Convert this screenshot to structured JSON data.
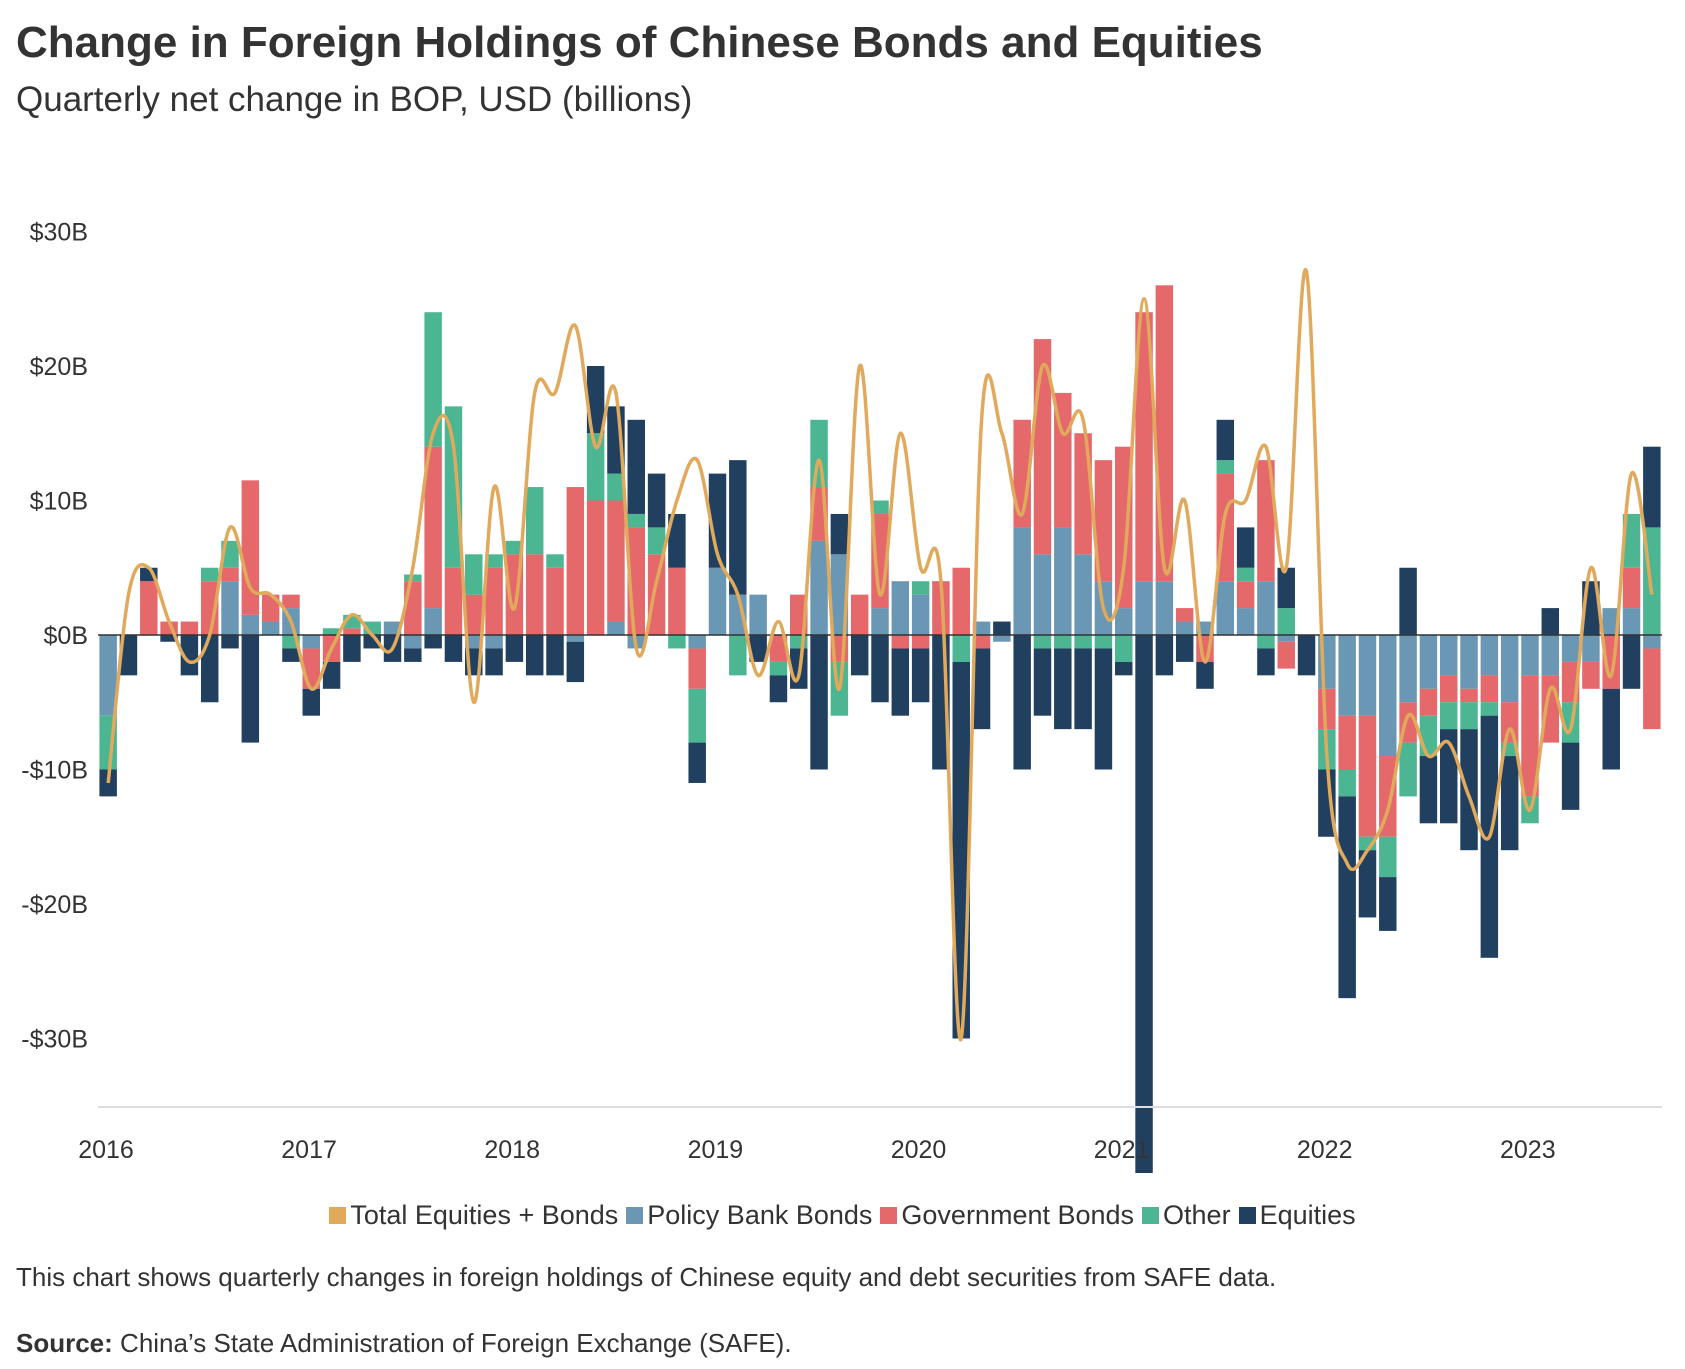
{
  "header": {
    "title": "Change in Foreign Holdings of Chinese Bonds and Equities",
    "subtitle": "Quarterly net change in BOP, USD (billions)"
  },
  "footer": {
    "note": "This chart shows quarterly changes in foreign holdings of Chinese equity and debt securities from SAFE data.",
    "source_label": "Source:",
    "source_text": "China’s State Administration of Foreign Exchange (SAFE)."
  },
  "chart_data": {
    "type": "bar",
    "stacked": true,
    "grid": false,
    "legend_position": "bottom",
    "ylim": [
      -35,
      35
    ],
    "y_ticks": [
      30,
      20,
      10,
      0,
      -10,
      -20,
      -30
    ],
    "y_tick_labels": [
      "$30B",
      "$20B",
      "$10B",
      "$0B",
      "-$10B",
      "-$20B",
      "-$30B"
    ],
    "x_year_labels": [
      "2016",
      "2017",
      "2018",
      "2019",
      "2020",
      "2021",
      "2022",
      "2023"
    ],
    "x_year_start_index": [
      0,
      10,
      20,
      30,
      40,
      50,
      60,
      70
    ],
    "colors": {
      "total": "#e0a95c",
      "policy": "#6a97b4",
      "government": "#e5686a",
      "other": "#4cb592",
      "equities": "#21405f"
    },
    "legend": [
      {
        "key": "total",
        "label": "Total Equities + Bonds"
      },
      {
        "key": "policy",
        "label": "Policy Bank Bonds"
      },
      {
        "key": "government",
        "label": "Government Bonds"
      },
      {
        "key": "other",
        "label": "Other"
      },
      {
        "key": "equities",
        "label": "Equities"
      }
    ],
    "series": [
      {
        "key": "policy",
        "name": "Policy Bank Bonds",
        "values": [
          -6,
          0,
          0,
          0,
          0,
          0,
          4,
          1.5,
          1,
          2,
          -1,
          0,
          0,
          0,
          1,
          -1,
          2,
          0,
          -1,
          -1,
          0,
          0,
          0,
          -0.5,
          0,
          1,
          -1,
          0,
          0,
          -1,
          5,
          3,
          3,
          0,
          0,
          7,
          6,
          0,
          2,
          4,
          3,
          0,
          0,
          1,
          -0.5,
          8,
          6,
          8,
          6,
          4,
          2,
          4,
          4,
          1,
          1,
          4,
          2,
          4,
          -0.5,
          0,
          -4,
          -6,
          -6,
          -9,
          -5,
          -4,
          -3,
          -4,
          -3,
          -5,
          -3,
          -3,
          -2,
          -2,
          2,
          2,
          -1
        ]
      },
      {
        "key": "government",
        "name": "Government Bonds",
        "values": [
          0,
          0,
          4,
          1,
          1,
          4,
          1,
          10,
          2,
          1,
          -3,
          -2,
          0.5,
          0,
          0,
          4,
          12,
          5,
          3,
          5,
          6,
          6,
          5,
          11,
          10,
          9,
          8,
          6,
          5,
          -3,
          0,
          0,
          0,
          -2,
          3,
          4,
          -2,
          3,
          7,
          -1,
          -1,
          4,
          5,
          -1,
          0,
          8,
          16,
          10,
          9,
          9,
          12,
          20,
          22,
          1,
          -2,
          8,
          2,
          9,
          -2,
          0,
          -3,
          -4,
          -9,
          -6,
          -3,
          -2,
          -2,
          -1,
          -2,
          -3,
          -9,
          -5,
          -3,
          -2,
          -4,
          3,
          -6
        ]
      },
      {
        "key": "other",
        "name": "Other",
        "values": [
          -4,
          0,
          0,
          0,
          0,
          1,
          2,
          0,
          0,
          -1,
          0,
          0.5,
          1,
          1,
          0,
          0.5,
          10,
          12,
          3,
          1,
          1,
          5,
          1,
          0,
          5,
          2,
          1,
          2,
          -1,
          -4,
          0,
          -3,
          0,
          -1,
          -1,
          5,
          -4,
          0,
          1,
          0,
          1,
          0,
          -2,
          0,
          0,
          0,
          -1,
          -1,
          -1,
          -1,
          -2,
          0,
          0,
          0,
          0,
          1,
          1,
          -1,
          2,
          0,
          -3,
          -2,
          -1,
          -3,
          -4,
          -3,
          -2,
          -2,
          -1,
          -1,
          -2,
          0,
          -3,
          0,
          0,
          4,
          8
        ]
      },
      {
        "key": "equities",
        "name": "Equities",
        "values": [
          -2,
          -3,
          1,
          -0.5,
          -3,
          -5,
          -1,
          -8,
          0,
          -1,
          -2,
          -2,
          -2,
          -1,
          -2,
          -1,
          -1,
          -2,
          -2,
          -2,
          -2,
          -3,
          -3,
          -3,
          5,
          5,
          7,
          4,
          4,
          -3,
          7,
          10,
          -2,
          -2,
          -3,
          -10,
          3,
          -3,
          -5,
          -5,
          -4,
          -10,
          -28,
          -6,
          1,
          -10,
          -5,
          -6,
          -6,
          -9,
          -1,
          -40,
          -3,
          -2,
          -2,
          3,
          3,
          -2,
          3,
          -3,
          -5,
          -15,
          -5,
          -4,
          5,
          -5,
          -7,
          -9,
          -18,
          -7,
          0,
          2,
          -5,
          4,
          -6,
          -4,
          6
        ]
      }
    ],
    "total_line": {
      "key": "total",
      "name": "Total Equities + Bonds",
      "values": [
        -11,
        3,
        5,
        1,
        -2,
        0,
        8,
        3.5,
        3,
        1,
        -4,
        -1,
        1.5,
        0,
        -1,
        5,
        15,
        14,
        -5,
        11,
        2,
        18,
        18,
        23,
        14,
        18,
        -1,
        4,
        10,
        13,
        6,
        3,
        -3,
        1,
        -3,
        13,
        -4,
        20,
        3,
        15,
        5,
        4,
        -30,
        16,
        15,
        9,
        20,
        15,
        16,
        2,
        5,
        25,
        5,
        10,
        -2,
        9,
        10,
        14,
        5,
        27,
        -9,
        -17,
        -16,
        -13,
        -6,
        -9,
        -8,
        -12,
        -15,
        -7,
        -13,
        -4,
        -7,
        5,
        -3,
        12,
        3
      ]
    }
  }
}
